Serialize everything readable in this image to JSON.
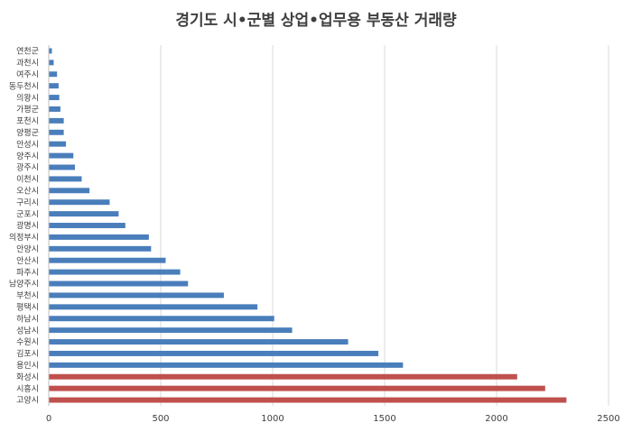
{
  "chart_data": {
    "type": "bar",
    "orientation": "horizontal",
    "title": "경기도 시•군별 상업•업무용 부동산 거래량",
    "xlabel": "",
    "ylabel": "",
    "xlim": [
      0,
      2500
    ],
    "x_ticks": [
      "0",
      "500",
      "1000",
      "1500",
      "2000",
      "2500"
    ],
    "grid": true,
    "legend": "none",
    "colors": {
      "default": "#4a7ebb",
      "highlight": "#c0504d"
    },
    "categories": [
      "고양시",
      "시흥시",
      "화성시",
      "용인시",
      "김포시",
      "수원시",
      "성남시",
      "하남시",
      "평택시",
      "부천시",
      "남양주시",
      "파주시",
      "안산시",
      "안양시",
      "의정부시",
      "광명시",
      "군포시",
      "구리시",
      "오산시",
      "이천시",
      "광주시",
      "양주시",
      "안성시",
      "양평군",
      "포천시",
      "가평군",
      "의왕시",
      "동두천시",
      "여주시",
      "과천시",
      "연천군"
    ],
    "values": [
      2310,
      2215,
      2090,
      1580,
      1470,
      1335,
      1085,
      1005,
      930,
      780,
      620,
      585,
      520,
      455,
      445,
      340,
      310,
      270,
      180,
      145,
      115,
      108,
      75,
      65,
      65,
      50,
      45,
      42,
      35,
      20,
      12
    ],
    "highlight": [
      true,
      true,
      true,
      false,
      false,
      false,
      false,
      false,
      false,
      false,
      false,
      false,
      false,
      false,
      false,
      false,
      false,
      false,
      false,
      false,
      false,
      false,
      false,
      false,
      false,
      false,
      false,
      false,
      false,
      false,
      false
    ]
  }
}
